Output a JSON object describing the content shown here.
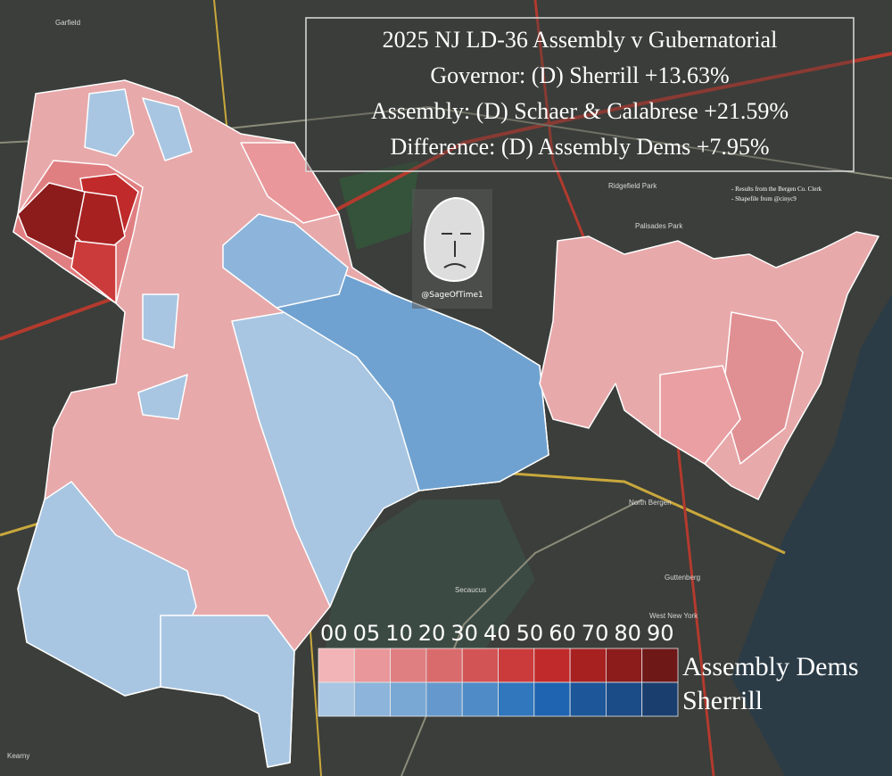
{
  "title_lines": [
    "2025 NJ LD-36 Assembly v Gubernatorial",
    "Governor: (D) Sherrill +13.63%",
    "Assembly: (D) Schaer & Calabrese +21.59%",
    "Difference: (D) Assembly Dems +7.95%"
  ],
  "sources": [
    "- Results from the Bergen Co. Clerk",
    "- Shapefile from @cinyc9"
  ],
  "watermark": "@SageOfTime1",
  "places": [
    "Garfield",
    "Ridgefield Park",
    "Palisades Park",
    "North Bergen",
    "Secaucus",
    "Guttenberg",
    "West New York",
    "Kearny"
  ],
  "legend": {
    "labels": [
      "00",
      "05",
      "10",
      "20",
      "30",
      "40",
      "50",
      "60",
      "70",
      "80",
      "90"
    ],
    "rows": [
      {
        "name": "Assembly Dems",
        "colors": [
          "#f2b4b6",
          "#e9979a",
          "#e07f82",
          "#d96b6c",
          "#d35455",
          "#cc3b3b",
          "#c12a2a",
          "#a82121",
          "#8c1c1c",
          "#6e1818"
        ]
      },
      {
        "name": "Sherrill",
        "colors": [
          "#a8c6e2",
          "#8db5db",
          "#79a8d4",
          "#6599cd",
          "#4f8bc6",
          "#3077bd",
          "#1f64b0",
          "#1d5699",
          "#1c4c88",
          "#1a3f6e"
        ]
      }
    ]
  }
}
